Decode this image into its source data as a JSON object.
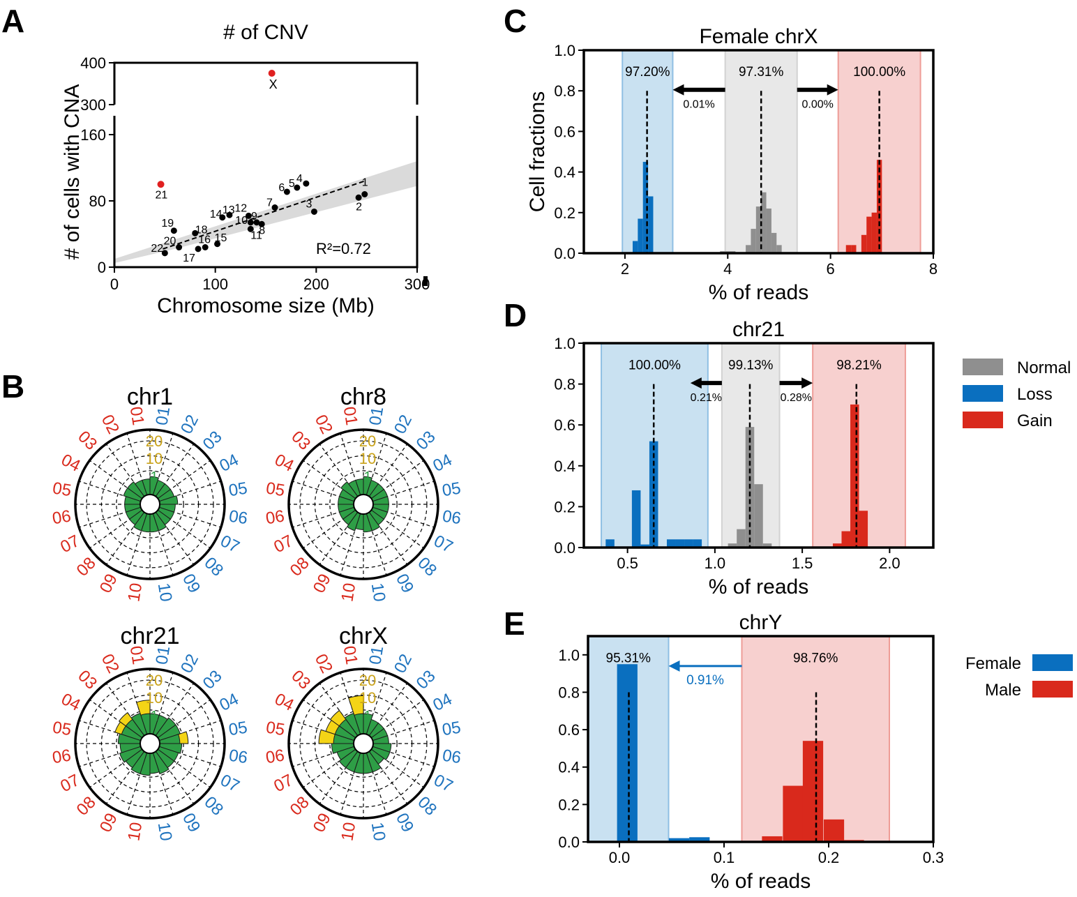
{
  "panel_letters": {
    "a": "A",
    "b": "B",
    "c": "C",
    "d": "D",
    "e": "E"
  },
  "colors": {
    "loss": "#0a6fbf",
    "gain": "#d9291c",
    "normal": "#8f8f8f",
    "loss_band": "#c9e1f1",
    "gain_band": "#f7d0cf",
    "normal_band": "#e8e8e8",
    "highlight": "#e02020",
    "wedge_green": "#2e9e46",
    "wedge_yellow": "#f4d416",
    "loss_label": "#1e73be",
    "gain_label": "#d9291c",
    "ring_label": "#c9a21a"
  },
  "chart_data": [
    {
      "id": "A",
      "type": "scatter",
      "title": "# of CNV",
      "xlabel": "Chromosome size (Mb)",
      "ylabel": "# of cells with CNA",
      "xlim": [
        0,
        300
      ],
      "ylim_lower": [
        0,
        180
      ],
      "ylim_upper": [
        280,
        400
      ],
      "broken_y_axis": true,
      "xticks": [
        "0",
        "100",
        "200",
        "300"
      ],
      "yticks_lower": [
        "0",
        "80",
        "160"
      ],
      "yticks_upper": [
        "300",
        "400"
      ],
      "r2_text": "R²=0.72",
      "fit_line": {
        "x0": 48,
        "y0": 22,
        "x1": 248,
        "y1": 104
      },
      "points": [
        {
          "label": "1",
          "x": 248,
          "y": 88,
          "highlight": false
        },
        {
          "label": "2",
          "x": 242,
          "y": 84,
          "highlight": false
        },
        {
          "label": "3",
          "x": 198,
          "y": 67,
          "highlight": false
        },
        {
          "label": "4",
          "x": 190,
          "y": 101,
          "highlight": false
        },
        {
          "label": "5",
          "x": 181,
          "y": 96,
          "highlight": false
        },
        {
          "label": "6",
          "x": 171,
          "y": 91,
          "highlight": false
        },
        {
          "label": "7",
          "x": 159,
          "y": 72,
          "highlight": false
        },
        {
          "label": "8",
          "x": 146,
          "y": 52,
          "highlight": false
        },
        {
          "label": "9",
          "x": 141,
          "y": 54,
          "highlight": false
        },
        {
          "label": "10",
          "x": 135,
          "y": 54,
          "highlight": false
        },
        {
          "label": "11",
          "x": 135,
          "y": 46,
          "highlight": false
        },
        {
          "label": "12",
          "x": 133,
          "y": 62,
          "highlight": false
        },
        {
          "label": "13",
          "x": 114,
          "y": 63,
          "highlight": false
        },
        {
          "label": "14",
          "x": 107,
          "y": 60,
          "highlight": false
        },
        {
          "label": "15",
          "x": 102,
          "y": 28,
          "highlight": false
        },
        {
          "label": "16",
          "x": 90,
          "y": 24,
          "highlight": false
        },
        {
          "label": "17",
          "x": 83,
          "y": 22,
          "highlight": false
        },
        {
          "label": "18",
          "x": 80,
          "y": 41,
          "highlight": false
        },
        {
          "label": "19",
          "x": 59,
          "y": 44,
          "highlight": false
        },
        {
          "label": "20",
          "x": 64,
          "y": 24,
          "highlight": false
        },
        {
          "label": "21",
          "x": 46,
          "y": 100,
          "highlight": true
        },
        {
          "label": "22",
          "x": 50,
          "y": 17,
          "highlight": false
        },
        {
          "label": "X",
          "x": 156,
          "y": 375,
          "highlight": true
        }
      ]
    },
    {
      "id": "B",
      "type": "bar",
      "subtype": "polar",
      "categories": [
        "01",
        "02",
        "03",
        "04",
        "05",
        "06",
        "07",
        "08",
        "09",
        "10"
      ],
      "ring_labels": [
        "1",
        "10",
        "20"
      ],
      "charts": [
        {
          "title": "chr1",
          "gain": [
            3,
            3,
            4,
            4,
            3,
            3,
            3,
            3,
            4,
            4
          ],
          "loss": [
            4,
            3,
            3,
            3,
            4,
            3,
            3,
            3,
            4,
            4
          ]
        },
        {
          "title": "chr8",
          "gain": [
            3,
            3,
            4,
            3,
            3,
            3,
            3,
            3,
            4,
            3
          ],
          "loss": [
            4,
            3,
            3,
            3,
            3,
            3,
            3,
            3,
            4,
            4
          ]
        },
        {
          "title": "chr21",
          "gain": [
            14,
            6,
            10,
            9,
            6,
            5,
            6,
            5,
            6,
            6
          ],
          "loss": [
            5,
            5,
            6,
            6,
            10,
            6,
            5,
            5,
            6,
            5
          ]
        },
        {
          "title": "chrX",
          "gain": [
            18,
            6,
            12,
            11,
            15,
            6,
            4,
            5,
            5,
            5
          ],
          "loss": [
            5,
            3,
            3,
            3,
            3,
            4,
            4,
            3,
            5,
            5
          ]
        }
      ]
    },
    {
      "id": "C",
      "type": "bar",
      "subtype": "histogram",
      "title": "Female chrX",
      "xlabel": "% of reads",
      "ylabel": "Cell fractions",
      "xlim": [
        1.2,
        8
      ],
      "ylim": [
        0,
        1.0
      ],
      "xticks": [
        2,
        4,
        6,
        8
      ],
      "yticks": [
        "0.0",
        "0.2",
        "0.4",
        "0.6",
        "0.8",
        "1.0"
      ],
      "bands": [
        {
          "cls": "loss",
          "x0": 1.95,
          "x1": 2.93,
          "label": "97.20%",
          "median": 2.43
        },
        {
          "cls": "normal",
          "x0": 3.95,
          "x1": 5.35,
          "label": "97.31%",
          "median": 4.65
        },
        {
          "cls": "gain",
          "x0": 6.15,
          "x1": 7.75,
          "label": "100.00%",
          "median": 6.95
        }
      ],
      "arrows": [
        {
          "x_from": 3.95,
          "x_to": 2.93,
          "y": 0.805,
          "label": "0.01%"
        },
        {
          "x_from": 5.35,
          "x_to": 6.15,
          "y": 0.805,
          "label": "0.00%"
        }
      ],
      "bin_width": 0.1,
      "series": [
        {
          "name": "Loss",
          "cls": "loss",
          "x": [
            2.2,
            2.3,
            2.4,
            2.5,
            2.7,
            2.8,
            2.9
          ],
          "values": [
            0.06,
            0.17,
            0.45,
            0.28,
            0.005,
            0.005,
            0.005
          ]
        },
        {
          "name": "Normal",
          "cls": "normal",
          "x": [
            3.9,
            4.0,
            4.1,
            4.4,
            4.5,
            4.6,
            4.7,
            4.8,
            4.9,
            5.0
          ],
          "values": [
            0.01,
            0.01,
            0.01,
            0.04,
            0.12,
            0.23,
            0.3,
            0.22,
            0.1,
            0.04
          ]
        },
        {
          "name": "Gain",
          "cls": "gain",
          "x": [
            6.35,
            6.45,
            6.65,
            6.75,
            6.85,
            6.95
          ],
          "values": [
            0.04,
            0.04,
            0.09,
            0.18,
            0.2,
            0.46
          ]
        }
      ]
    },
    {
      "id": "D",
      "type": "bar",
      "subtype": "histogram",
      "title": "chr21",
      "xlabel": "% of reads",
      "ylabel": "",
      "xlim": [
        0.25,
        2.25
      ],
      "ylim": [
        0,
        1.0
      ],
      "xticks": [
        "0.5",
        "1.0",
        "1.5",
        "2.0"
      ],
      "xtick_values": [
        0.5,
        1.0,
        1.5,
        2.0
      ],
      "yticks": [
        "0.0",
        "0.2",
        "0.4",
        "0.6",
        "0.8",
        "1.0"
      ],
      "bands": [
        {
          "cls": "loss",
          "x0": 0.35,
          "x1": 0.96,
          "label": "100.00%",
          "median": 0.65
        },
        {
          "cls": "normal",
          "x0": 1.04,
          "x1": 1.37,
          "label": "99.13%",
          "median": 1.2
        },
        {
          "cls": "gain",
          "x0": 1.56,
          "x1": 2.09,
          "label": "98.21%",
          "median": 1.81
        }
      ],
      "arrows": [
        {
          "x_from": 1.04,
          "x_to": 0.86,
          "y": 0.805,
          "label": "0.21%"
        },
        {
          "x_from": 1.37,
          "x_to": 1.56,
          "y": 0.805,
          "label": "0.28%"
        }
      ],
      "bin_width": 0.05,
      "series": [
        {
          "name": "Loss",
          "cls": "loss",
          "x": [
            0.4,
            0.55,
            0.6,
            0.65,
            0.75,
            0.8,
            0.85,
            0.9
          ],
          "values": [
            0.04,
            0.28,
            0.015,
            0.52,
            0.04,
            0.04,
            0.04,
            0.04
          ]
        },
        {
          "name": "Normal",
          "cls": "normal",
          "x": [
            1.05,
            1.1,
            1.15,
            1.2,
            1.25,
            1.3
          ],
          "values": [
            0.005,
            0.02,
            0.09,
            0.59,
            0.31,
            0.02
          ]
        },
        {
          "name": "Gain",
          "cls": "gain",
          "x": [
            1.7,
            1.75,
            1.8,
            1.85
          ],
          "values": [
            0.02,
            0.08,
            0.7,
            0.18
          ]
        }
      ],
      "legend": [
        {
          "label": "Normal",
          "cls": "normal"
        },
        {
          "label": "Loss",
          "cls": "loss"
        },
        {
          "label": "Gain",
          "cls": "gain"
        }
      ]
    },
    {
      "id": "E",
      "type": "bar",
      "subtype": "histogram",
      "title": "chrY",
      "xlabel": "% of reads",
      "ylabel": "",
      "xlim": [
        -0.03,
        0.3
      ],
      "ylim": [
        0,
        1.1
      ],
      "xticks": [
        "0.0",
        "0.1",
        "0.2",
        "0.3"
      ],
      "xtick_values": [
        0.0,
        0.1,
        0.2,
        0.3
      ],
      "yticks": [
        "0.0",
        "0.2",
        "0.4",
        "0.6",
        "0.8",
        "1.0"
      ],
      "ytick_values": [
        0,
        0.2,
        0.4,
        0.6,
        0.8,
        1.0
      ],
      "bands": [
        {
          "cls": "loss",
          "x0": -0.03,
          "x1": 0.047,
          "label": "95.31%",
          "median": 0.009
        },
        {
          "cls": "gain",
          "x0": 0.117,
          "x1": 0.258,
          "label": "98.76%",
          "median": 0.188
        }
      ],
      "median_tops": [
        0.8,
        0.8
      ],
      "arrows": [
        {
          "x_from": 0.117,
          "x_to": 0.047,
          "y": 0.94,
          "label": "0.91%",
          "colored": true
        }
      ],
      "bin_width": 0.0195,
      "series": [
        {
          "name": "Female",
          "cls": "loss",
          "x": [
            0.0075,
            0.057,
            0.0765
          ],
          "values": [
            0.95,
            0.02,
            0.025
          ]
        },
        {
          "name": "Male",
          "cls": "gain",
          "x": [
            0.146,
            0.166,
            0.185,
            0.205,
            0.224
          ],
          "values": [
            0.03,
            0.3,
            0.54,
            0.12,
            0.01
          ]
        }
      ],
      "legend": [
        {
          "label": "Female",
          "cls": "loss"
        },
        {
          "label": "Male",
          "cls": "gain"
        }
      ]
    }
  ]
}
